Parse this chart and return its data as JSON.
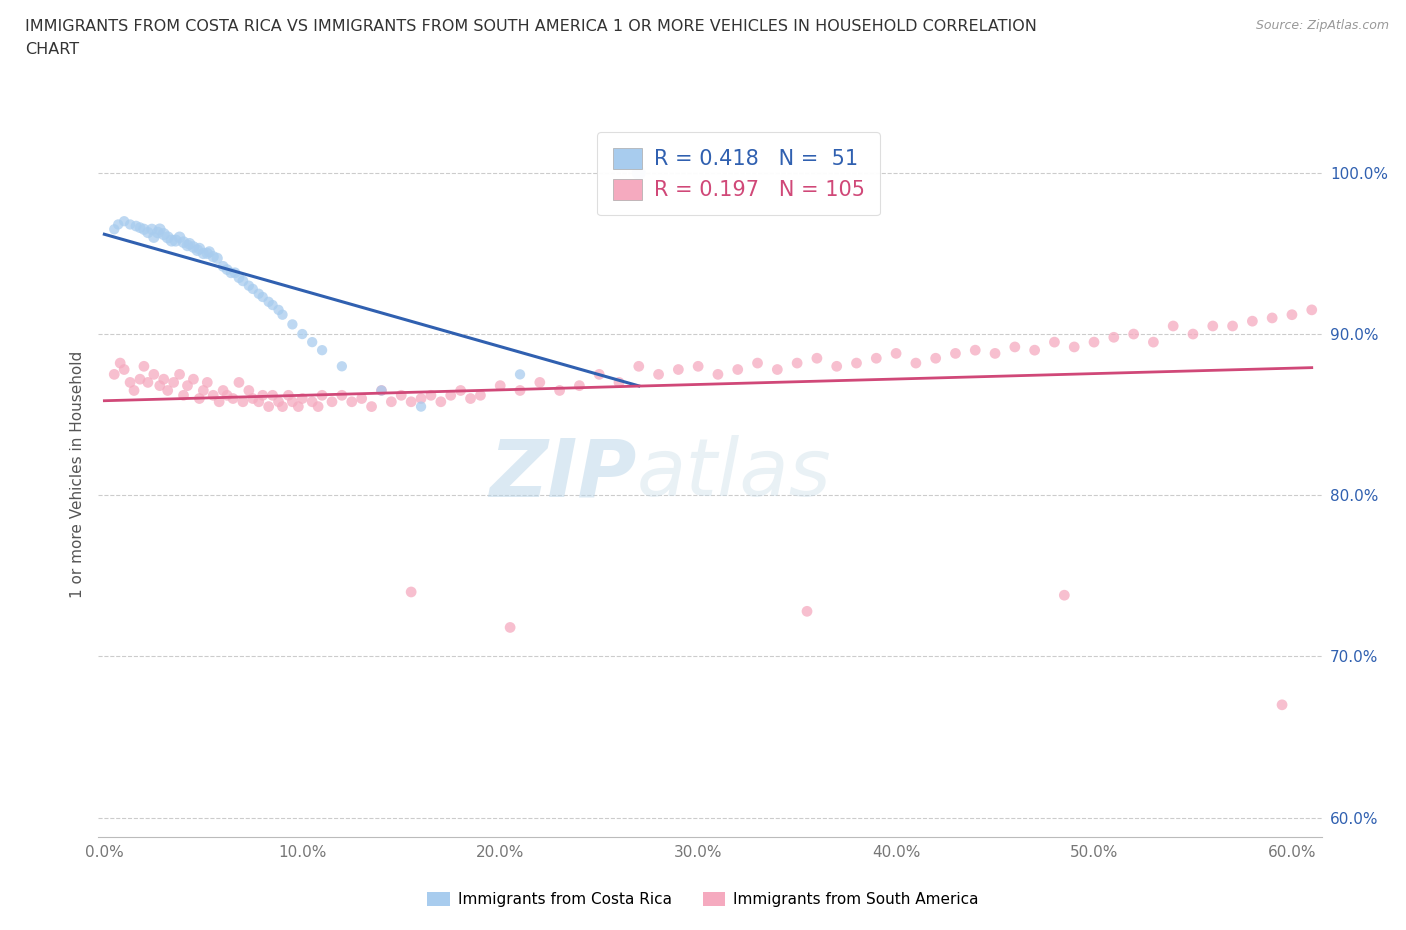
{
  "title_line1": "IMMIGRANTS FROM COSTA RICA VS IMMIGRANTS FROM SOUTH AMERICA 1 OR MORE VEHICLES IN HOUSEHOLD CORRELATION",
  "title_line2": "CHART",
  "source": "Source: ZipAtlas.com",
  "ylabel": "1 or more Vehicles in Household",
  "xlim": [
    -0.003,
    0.615
  ],
  "ylim": [
    0.588,
    1.038
  ],
  "xticks": [
    0.0,
    0.1,
    0.2,
    0.3,
    0.4,
    0.5,
    0.6
  ],
  "xticklabels": [
    "0.0%",
    "10.0%",
    "20.0%",
    "30.0%",
    "40.0%",
    "50.0%",
    "60.0%"
  ],
  "yticks": [
    0.6,
    0.7,
    0.8,
    0.9,
    1.0
  ],
  "yticklabels": [
    "60.0%",
    "70.0%",
    "80.0%",
    "90.0%",
    "100.0%"
  ],
  "blue_R": 0.418,
  "blue_N": 51,
  "pink_R": 0.197,
  "pink_N": 105,
  "blue_color": "#A8CCEE",
  "pink_color": "#F5AABF",
  "blue_line_color": "#3060B0",
  "pink_line_color": "#D04878",
  "legend1": "Immigrants from Costa Rica",
  "legend2": "Immigrants from South America",
  "watermark_zip": "ZIP",
  "watermark_atlas": "atlas",
  "background_color": "#ffffff",
  "blue_x": [
    0.005,
    0.007,
    0.01,
    0.013,
    0.016,
    0.018,
    0.02,
    0.022,
    0.024,
    0.025,
    0.027,
    0.028,
    0.03,
    0.032,
    0.034,
    0.036,
    0.038,
    0.04,
    0.042,
    0.043,
    0.045,
    0.047,
    0.048,
    0.05,
    0.052,
    0.053,
    0.055,
    0.057,
    0.06,
    0.062,
    0.064,
    0.066,
    0.068,
    0.07,
    0.073,
    0.075,
    0.078,
    0.08,
    0.083,
    0.085,
    0.088,
    0.09,
    0.095,
    0.1,
    0.105,
    0.11,
    0.12,
    0.14,
    0.16,
    0.21,
    0.27
  ],
  "blue_y": [
    0.965,
    0.968,
    0.97,
    0.968,
    0.967,
    0.966,
    0.965,
    0.963,
    0.965,
    0.96,
    0.963,
    0.965,
    0.962,
    0.96,
    0.958,
    0.958,
    0.96,
    0.957,
    0.955,
    0.956,
    0.954,
    0.952,
    0.953,
    0.95,
    0.95,
    0.951,
    0.948,
    0.947,
    0.942,
    0.94,
    0.938,
    0.938,
    0.935,
    0.933,
    0.93,
    0.928,
    0.925,
    0.923,
    0.92,
    0.918,
    0.915,
    0.912,
    0.906,
    0.9,
    0.895,
    0.89,
    0.88,
    0.865,
    0.855,
    0.875,
    1.0
  ],
  "blue_sizes": [
    55,
    55,
    55,
    55,
    60,
    60,
    65,
    65,
    65,
    65,
    70,
    70,
    75,
    75,
    75,
    75,
    70,
    70,
    70,
    70,
    70,
    70,
    70,
    65,
    65,
    65,
    65,
    65,
    60,
    60,
    60,
    60,
    60,
    60,
    55,
    55,
    55,
    55,
    55,
    55,
    55,
    55,
    55,
    55,
    55,
    55,
    55,
    55,
    55,
    55,
    100
  ],
  "pink_x": [
    0.005,
    0.008,
    0.01,
    0.013,
    0.015,
    0.018,
    0.02,
    0.022,
    0.025,
    0.028,
    0.03,
    0.032,
    0.035,
    0.038,
    0.04,
    0.042,
    0.045,
    0.048,
    0.05,
    0.052,
    0.055,
    0.058,
    0.06,
    0.062,
    0.065,
    0.068,
    0.07,
    0.073,
    0.075,
    0.078,
    0.08,
    0.083,
    0.085,
    0.088,
    0.09,
    0.093,
    0.095,
    0.098,
    0.1,
    0.105,
    0.108,
    0.11,
    0.115,
    0.12,
    0.125,
    0.13,
    0.135,
    0.14,
    0.145,
    0.15,
    0.155,
    0.16,
    0.165,
    0.17,
    0.175,
    0.18,
    0.185,
    0.19,
    0.2,
    0.21,
    0.22,
    0.23,
    0.24,
    0.25,
    0.26,
    0.27,
    0.28,
    0.29,
    0.3,
    0.31,
    0.32,
    0.33,
    0.34,
    0.35,
    0.36,
    0.37,
    0.38,
    0.39,
    0.4,
    0.41,
    0.42,
    0.43,
    0.44,
    0.45,
    0.46,
    0.47,
    0.48,
    0.49,
    0.5,
    0.51,
    0.52,
    0.53,
    0.54,
    0.55,
    0.56,
    0.57,
    0.58,
    0.59,
    0.6,
    0.61,
    0.155,
    0.205,
    0.355,
    0.485,
    0.595
  ],
  "pink_y": [
    0.875,
    0.882,
    0.878,
    0.87,
    0.865,
    0.872,
    0.88,
    0.87,
    0.875,
    0.868,
    0.872,
    0.865,
    0.87,
    0.875,
    0.862,
    0.868,
    0.872,
    0.86,
    0.865,
    0.87,
    0.862,
    0.858,
    0.865,
    0.862,
    0.86,
    0.87,
    0.858,
    0.865,
    0.86,
    0.858,
    0.862,
    0.855,
    0.862,
    0.858,
    0.855,
    0.862,
    0.858,
    0.855,
    0.86,
    0.858,
    0.855,
    0.862,
    0.858,
    0.862,
    0.858,
    0.86,
    0.855,
    0.865,
    0.858,
    0.862,
    0.858,
    0.86,
    0.862,
    0.858,
    0.862,
    0.865,
    0.86,
    0.862,
    0.868,
    0.865,
    0.87,
    0.865,
    0.868,
    0.875,
    0.87,
    0.88,
    0.875,
    0.878,
    0.88,
    0.875,
    0.878,
    0.882,
    0.878,
    0.882,
    0.885,
    0.88,
    0.882,
    0.885,
    0.888,
    0.882,
    0.885,
    0.888,
    0.89,
    0.888,
    0.892,
    0.89,
    0.895,
    0.892,
    0.895,
    0.898,
    0.9,
    0.895,
    0.905,
    0.9,
    0.905,
    0.905,
    0.908,
    0.91,
    0.912,
    0.915,
    0.74,
    0.718,
    0.728,
    0.738,
    0.67
  ],
  "pink_sizes": [
    60,
    60,
    60,
    60,
    60,
    60,
    60,
    60,
    60,
    60,
    60,
    60,
    60,
    60,
    60,
    60,
    60,
    60,
    60,
    60,
    60,
    60,
    60,
    60,
    60,
    60,
    60,
    60,
    60,
    60,
    60,
    60,
    60,
    60,
    60,
    60,
    60,
    60,
    60,
    60,
    60,
    60,
    60,
    60,
    60,
    60,
    60,
    60,
    60,
    60,
    60,
    60,
    60,
    60,
    60,
    60,
    60,
    60,
    60,
    60,
    60,
    60,
    60,
    60,
    60,
    60,
    60,
    60,
    60,
    60,
    60,
    60,
    60,
    60,
    60,
    60,
    60,
    60,
    60,
    60,
    60,
    60,
    60,
    60,
    60,
    60,
    60,
    60,
    60,
    60,
    60,
    60,
    60,
    60,
    60,
    60,
    60,
    60,
    60,
    60,
    60,
    60,
    60,
    60,
    60
  ]
}
